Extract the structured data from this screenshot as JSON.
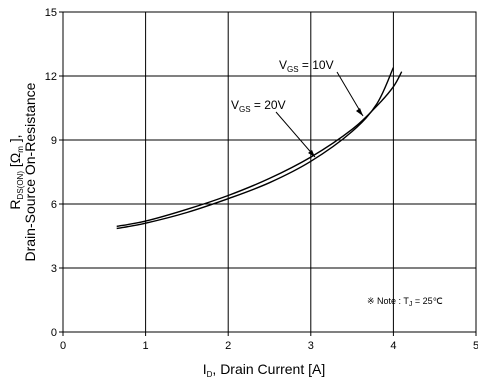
{
  "chart_data": {
    "type": "line",
    "xlabel_main": "I",
    "xlabel_sub": "D",
    "xlabel_rest": ", Drain Current [A]",
    "ylabel_line1_main": "R",
    "ylabel_line1_sub": "DS(ON)",
    "ylabel_line1_rest": " [",
    "ylabel_line1_omega": "Ω",
    "ylabel_line1_omega_sub": "m",
    "ylabel_line1_end": " ],",
    "ylabel_line2": "Drain-Source On-Resistance",
    "xlim": [
      0,
      5
    ],
    "ylim": [
      0,
      15
    ],
    "xticks": [
      "0",
      "1",
      "2",
      "3",
      "4",
      "5"
    ],
    "yticks": [
      "0",
      "3",
      "6",
      "9",
      "12",
      "15"
    ],
    "grid": true,
    "series": [
      {
        "name_main": "V",
        "name_sub": "GS",
        "name_rest": " = 10V",
        "x": [
          0.65,
          1.0,
          1.5,
          2.0,
          2.5,
          3.0,
          3.5,
          3.8,
          4.0,
          4.1
        ],
        "y": [
          4.95,
          5.2,
          5.75,
          6.4,
          7.2,
          8.2,
          9.5,
          10.6,
          11.5,
          12.2
        ]
      },
      {
        "name_main": "V",
        "name_sub": "GS",
        "name_rest": " = 20V",
        "x": [
          0.65,
          1.0,
          1.5,
          2.0,
          2.5,
          3.0,
          3.5,
          3.8,
          4.0
        ],
        "y": [
          4.85,
          5.1,
          5.6,
          6.25,
          7.0,
          8.0,
          9.4,
          10.7,
          12.4
        ]
      }
    ],
    "annotations": {
      "note_symbol": "※",
      "note_text": " Note : T",
      "note_sub": "J",
      "note_rest": " = 25℃"
    }
  }
}
